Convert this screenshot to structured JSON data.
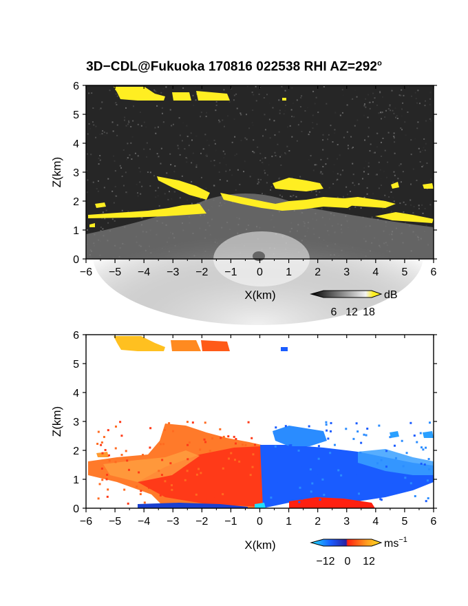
{
  "title": {
    "text": "3D−CDL@Fukuoka 170816 022538 RHI AZ=292",
    "superscript": "o"
  },
  "colors": {
    "echo_yellow": "#ffee22",
    "noise_dark": "#262626",
    "vel_blue": "#1a5cff",
    "vel_red": "#ff3a10",
    "vel_orange": "#ff9a20"
  },
  "chart_data": [
    {
      "type": "heatmap",
      "name": "intensity-panel",
      "xlabel": "X(km)",
      "ylabel": "Z(km)",
      "xlim": [
        -6,
        6
      ],
      "ylim": [
        0,
        6
      ],
      "xticks": [
        "−6",
        "−5",
        "−4",
        "−3",
        "−2",
        "−1",
        "0",
        "1",
        "2",
        "3",
        "4",
        "5",
        "6"
      ],
      "yticks": [
        "0",
        "1",
        "2",
        "3",
        "4",
        "5",
        "6"
      ],
      "grid": false,
      "colorbar": {
        "unit": "dB",
        "ticks": [
          "6",
          "12",
          "18"
        ],
        "values": [
          6,
          12,
          18
        ],
        "colormap": "grayscale-to-yellow"
      }
    },
    {
      "type": "heatmap",
      "name": "velocity-panel",
      "xlabel": "X(km)",
      "ylabel": "Z(km)",
      "xlim": [
        -6,
        6
      ],
      "ylim": [
        0,
        6
      ],
      "xticks": [
        "−6",
        "−5",
        "−4",
        "−3",
        "−2",
        "−1",
        "0",
        "1",
        "2",
        "3",
        "4",
        "5",
        "6"
      ],
      "yticks": [
        "0",
        "1",
        "2",
        "3",
        "4",
        "5",
        "6"
      ],
      "grid": false,
      "colorbar": {
        "unit": "ms",
        "unit_superscript": "−1",
        "ticks": [
          "−12",
          "0",
          "12"
        ],
        "values": [
          -12,
          0,
          12
        ],
        "colormap": "cyan-blue-red-yellow"
      }
    }
  ]
}
